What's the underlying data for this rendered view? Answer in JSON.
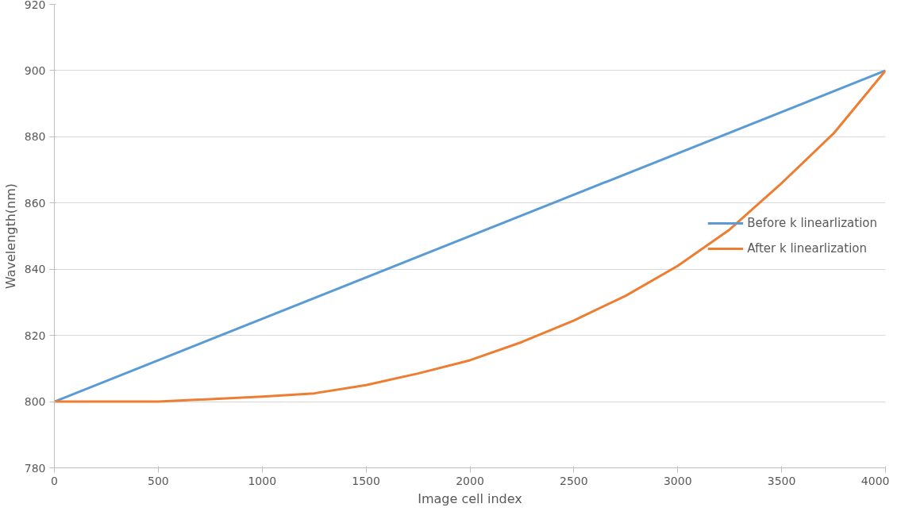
{
  "chart_data": {
    "type": "line",
    "xlabel": "Image cell index",
    "ylabel": "Wavelength(nm)",
    "xlim": [
      0,
      4000
    ],
    "xticks": [
      0,
      500,
      1000,
      1500,
      2000,
      2500,
      3000,
      3500,
      4000
    ],
    "ylim": [
      780,
      920
    ],
    "yticks": [
      780,
      800,
      820,
      840,
      860,
      880,
      900,
      920
    ],
    "grid": "y",
    "legend": "right",
    "marker": "none",
    "line_style": "solid",
    "series": [
      {
        "name": "Before k linearlization",
        "color": "#5b9bd5",
        "x": [
          0,
          4000
        ],
        "values": [
          800,
          900
        ]
      },
      {
        "name": "After k linearlization",
        "color": "#ed7d31",
        "x": [
          0,
          500,
          1000,
          1250,
          1500,
          1750,
          2000,
          2250,
          2500,
          2750,
          3000,
          3250,
          3500,
          3750,
          4000
        ],
        "values": [
          800,
          800,
          801.5,
          802.5,
          805,
          808.5,
          812.5,
          818,
          824.5,
          832,
          841,
          852,
          866,
          881,
          900
        ]
      }
    ]
  }
}
